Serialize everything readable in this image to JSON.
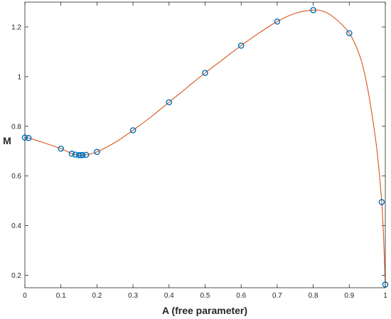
{
  "chart_data": {
    "type": "line",
    "title": "",
    "xlabel": "A (free parameter)",
    "ylabel": "M",
    "xlim": [
      0,
      1
    ],
    "ylim": [
      0.15,
      1.3
    ],
    "grid": false,
    "box": true,
    "x_ticks": [
      0,
      0.1,
      0.2,
      0.3,
      0.4,
      0.5,
      0.6,
      0.7,
      0.8,
      0.9,
      1
    ],
    "x_tick_labels": [
      "0",
      "0.1",
      "0.2",
      "0.3",
      "0.4",
      "0.5",
      "0.6",
      "0.7",
      "0.8",
      "0.9",
      "1"
    ],
    "y_ticks": [
      0.2,
      0.4,
      0.6,
      0.8,
      1.0,
      1.2
    ],
    "y_tick_labels": [
      "0.2",
      "0.4",
      "0.6",
      "0.8",
      "1",
      "1.2"
    ],
    "series": [
      {
        "style": "markers",
        "marker": "circle",
        "color": "#0072BD",
        "x": [
          0,
          0.01,
          0.1,
          0.13,
          0.14,
          0.15,
          0.155,
          0.16,
          0.17,
          0.2,
          0.3,
          0.4,
          0.5,
          0.6,
          0.7,
          0.8,
          0.9,
          0.99,
          1.0
        ],
        "y": [
          0.755,
          0.753,
          0.71,
          0.69,
          0.686,
          0.684,
          0.684,
          0.684,
          0.685,
          0.697,
          0.784,
          0.897,
          1.015,
          1.125,
          1.222,
          1.268,
          1.175,
          0.495,
          0.163
        ]
      },
      {
        "style": "line",
        "color": "#D95319",
        "x": [
          0,
          0.01,
          0.05,
          0.1,
          0.13,
          0.14,
          0.15,
          0.155,
          0.16,
          0.17,
          0.2,
          0.25,
          0.3,
          0.35,
          0.4,
          0.45,
          0.5,
          0.55,
          0.6,
          0.65,
          0.7,
          0.75,
          0.8,
          0.83,
          0.86,
          0.9,
          0.93,
          0.95,
          0.97,
          0.98,
          0.99,
          0.995,
          1.0
        ],
        "y": [
          0.755,
          0.753,
          0.735,
          0.71,
          0.69,
          0.686,
          0.684,
          0.684,
          0.684,
          0.685,
          0.697,
          0.735,
          0.784,
          0.838,
          0.897,
          0.956,
          1.015,
          1.07,
          1.125,
          1.176,
          1.222,
          1.255,
          1.268,
          1.262,
          1.235,
          1.175,
          1.08,
          0.96,
          0.78,
          0.66,
          0.495,
          0.36,
          0.163
        ]
      }
    ]
  }
}
